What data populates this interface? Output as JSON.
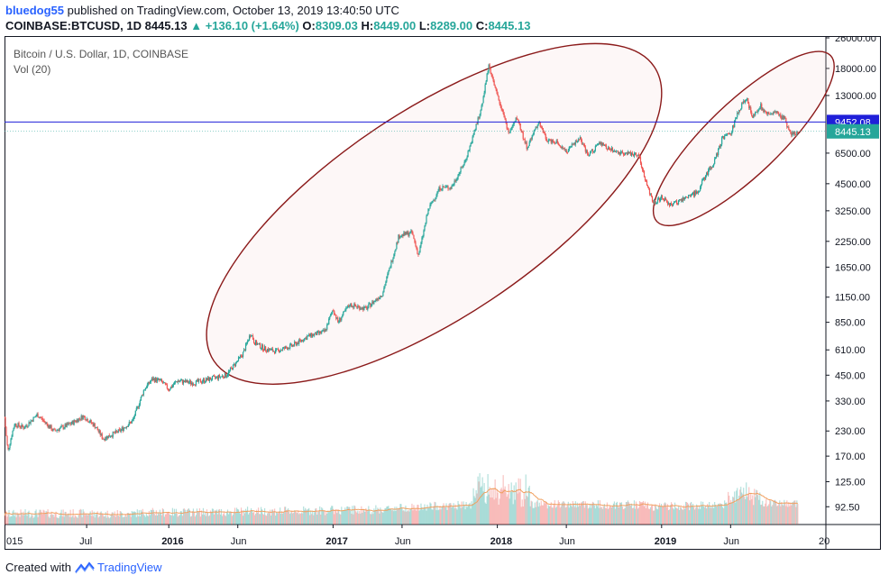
{
  "header": {
    "username": "bluedog55",
    "published_text": " published on TradingView.com, October 13, 2019 13:40:50 UTC",
    "symbol": "COINBASE:BTCUSD, 1D",
    "last": "8445.13",
    "change": "▲ +136.10 (+1.64%)",
    "o_label": "O:",
    "o_value": "8309.03",
    "h_label": "H:",
    "h_value": "8449.00",
    "l_label": "L:",
    "l_value": "8289.00",
    "c_label": "C:",
    "c_value": "8445.13"
  },
  "footer": {
    "created_with": "Created with",
    "brand": "TradingView"
  },
  "colors": {
    "up": "#26a69a",
    "down": "#ef5350",
    "hline": "#1f1fd9",
    "ellipse_stroke": "#8b1a1a",
    "ellipse_fill": "rgba(240,200,200,0.15)",
    "volume_ma": "#f0a060"
  },
  "chart_data": {
    "type": "candlestick",
    "title": "Bitcoin / U.S. Dollar, 1D, COINBASE",
    "subtitle": "Vol (20)",
    "yscale": "log",
    "ylim": [
      78,
      26000
    ],
    "y_ticks": [
      "26000.00",
      "18000.00",
      "13000.00",
      "6500.00",
      "4500.00",
      "3250.00",
      "2250.00",
      "1650.00",
      "1150.00",
      "850.00",
      "610.00",
      "450.00",
      "330.00",
      "230.00",
      "170.00",
      "125.00",
      "92.50"
    ],
    "x_ticks": [
      {
        "label": "015",
        "t": 0.0
      },
      {
        "label": "Jul",
        "t": 0.5
      },
      {
        "label": "2016",
        "t": 1.0
      },
      {
        "label": "Jun",
        "t": 1.42
      },
      {
        "label": "2017",
        "t": 2.0
      },
      {
        "label": "Jun",
        "t": 2.42
      },
      {
        "label": "2018",
        "t": 3.0
      },
      {
        "label": "Jun",
        "t": 3.42
      },
      {
        "label": "2019",
        "t": 4.0
      },
      {
        "label": "Jun",
        "t": 4.42
      },
      {
        "label": "20",
        "t": 5.0
      }
    ],
    "xlim": [
      0,
      5.0
    ],
    "horizontal_line": {
      "value": 9452.08,
      "label": "9452.08"
    },
    "last_price": {
      "value": 8445.13,
      "label": "8445.13"
    },
    "price_path": [
      [
        0.0,
        270
      ],
      [
        0.02,
        180
      ],
      [
        0.06,
        250
      ],
      [
        0.12,
        240
      ],
      [
        0.2,
        280
      ],
      [
        0.3,
        230
      ],
      [
        0.4,
        250
      ],
      [
        0.48,
        275
      ],
      [
        0.55,
        245
      ],
      [
        0.6,
        210
      ],
      [
        0.7,
        230
      ],
      [
        0.78,
        260
      ],
      [
        0.85,
        380
      ],
      [
        0.9,
        430
      ],
      [
        0.95,
        420
      ],
      [
        1.0,
        380
      ],
      [
        1.05,
        420
      ],
      [
        1.15,
        410
      ],
      [
        1.25,
        430
      ],
      [
        1.35,
        450
      ],
      [
        1.45,
        580
      ],
      [
        1.5,
        750
      ],
      [
        1.52,
        670
      ],
      [
        1.58,
        620
      ],
      [
        1.65,
        600
      ],
      [
        1.75,
        640
      ],
      [
        1.85,
        720
      ],
      [
        1.95,
        760
      ],
      [
        2.0,
        1000
      ],
      [
        2.03,
        850
      ],
      [
        2.1,
        1050
      ],
      [
        2.2,
        1000
      ],
      [
        2.3,
        1200
      ],
      [
        2.4,
        2400
      ],
      [
        2.48,
        2500
      ],
      [
        2.52,
        1900
      ],
      [
        2.58,
        3300
      ],
      [
        2.65,
        4300
      ],
      [
        2.72,
        4300
      ],
      [
        2.8,
        5800
      ],
      [
        2.85,
        7800
      ],
      [
        2.9,
        11000
      ],
      [
        2.95,
        19000
      ],
      [
        2.98,
        14500
      ],
      [
        3.03,
        11000
      ],
      [
        3.07,
        8200
      ],
      [
        3.12,
        10000
      ],
      [
        3.18,
        6900
      ],
      [
        3.25,
        9500
      ],
      [
        3.3,
        7600
      ],
      [
        3.36,
        7500
      ],
      [
        3.42,
        6600
      ],
      [
        3.5,
        7800
      ],
      [
        3.55,
        6300
      ],
      [
        3.62,
        7300
      ],
      [
        3.7,
        6700
      ],
      [
        3.78,
        6500
      ],
      [
        3.86,
        6400
      ],
      [
        3.9,
        4700
      ],
      [
        3.95,
        3600
      ],
      [
        4.0,
        3800
      ],
      [
        4.05,
        3500
      ],
      [
        4.1,
        3600
      ],
      [
        4.17,
        3900
      ],
      [
        4.22,
        4100
      ],
      [
        4.27,
        5000
      ],
      [
        4.32,
        5800
      ],
      [
        4.37,
        7800
      ],
      [
        4.42,
        8200
      ],
      [
        4.47,
        11000
      ],
      [
        4.52,
        12500
      ],
      [
        4.55,
        10000
      ],
      [
        4.6,
        11500
      ],
      [
        4.65,
        10300
      ],
      [
        4.7,
        10500
      ],
      [
        4.75,
        9800
      ],
      [
        4.78,
        8300
      ],
      [
        4.8,
        8100
      ],
      [
        4.83,
        8445
      ]
    ],
    "ellipses": [
      {
        "name": "large-ellipse",
        "start": [
          1.48,
          700
        ],
        "end": [
          3.75,
          14000
        ]
      },
      {
        "name": "small-ellipse",
        "start": [
          4.15,
          4000
        ],
        "end": [
          4.85,
          15000
        ]
      }
    ]
  }
}
